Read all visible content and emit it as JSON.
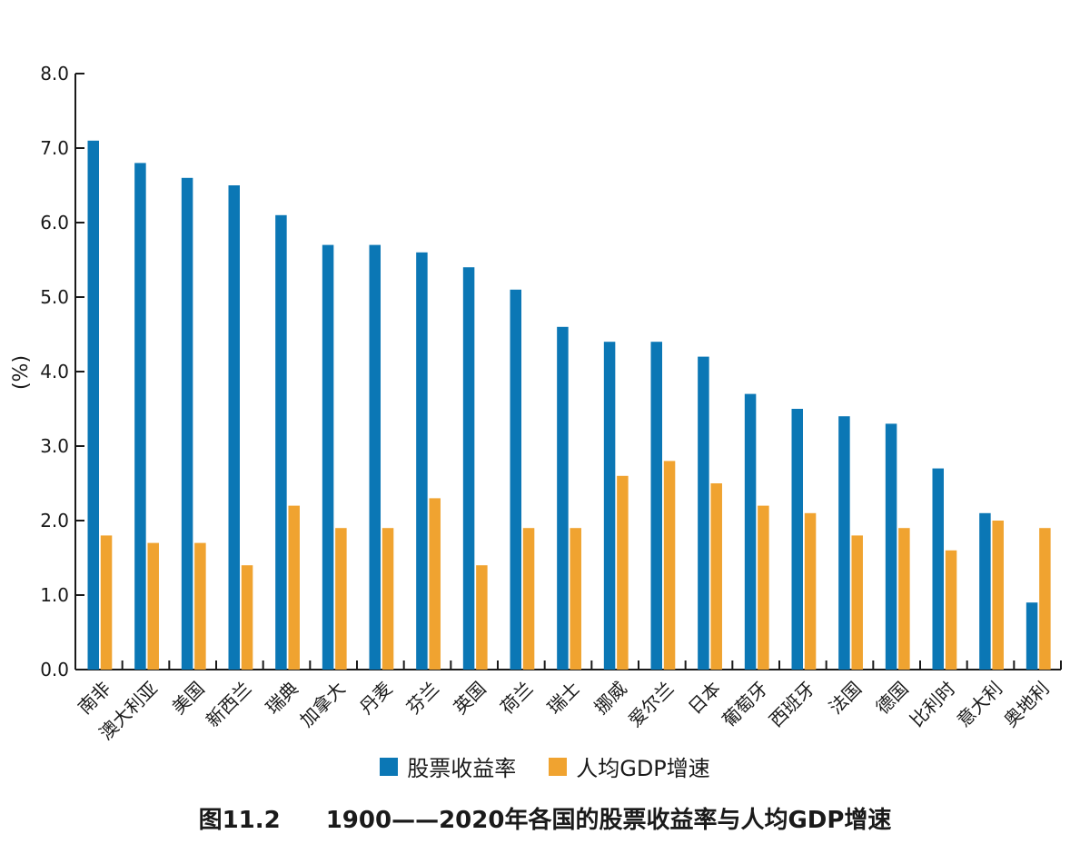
{
  "chart_data": {
    "type": "bar",
    "ylabel": "(%)",
    "ylim": [
      0,
      8
    ],
    "yticks": [
      "0.0",
      "1.0",
      "2.0",
      "3.0",
      "4.0",
      "5.0",
      "6.0",
      "7.0",
      "8.0"
    ],
    "categories": [
      "南非",
      "澳大利亚",
      "美国",
      "新西兰",
      "瑞典",
      "加拿大",
      "丹麦",
      "芬兰",
      "英国",
      "荷兰",
      "瑞士",
      "挪威",
      "爱尔兰",
      "日本",
      "葡萄牙",
      "西班牙",
      "法国",
      "德国",
      "比利时",
      "意大利",
      "奥地利"
    ],
    "series": [
      {
        "name": "股票收益率",
        "color": "#0b77b5",
        "values": [
          7.1,
          6.8,
          6.6,
          6.5,
          6.1,
          5.7,
          5.7,
          5.6,
          5.4,
          5.1,
          4.6,
          4.4,
          4.4,
          4.2,
          3.7,
          3.5,
          3.4,
          3.3,
          2.7,
          2.1,
          0.9
        ]
      },
      {
        "name": "人均GDP增速",
        "color": "#f0a330",
        "values": [
          1.8,
          1.7,
          1.7,
          1.4,
          2.2,
          1.9,
          1.9,
          2.3,
          1.4,
          1.9,
          1.9,
          2.6,
          2.8,
          2.5,
          2.2,
          2.1,
          1.8,
          1.9,
          1.6,
          2.0,
          1.9
        ]
      }
    ],
    "legend": "bottom-center",
    "grid": false
  },
  "caption": {
    "figure_no": "图11.2",
    "text": "1900——2020年各国的股票收益率与人均GDP增速"
  }
}
